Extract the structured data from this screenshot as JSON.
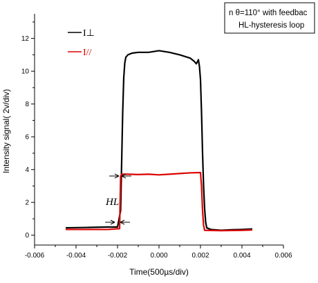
{
  "chart_data": {
    "type": "line",
    "xlabel": "Time(500µs/div)",
    "ylabel": "Intensity signal( 2v/div)",
    "xlim": [
      -0.006,
      0.006
    ],
    "ylim": [
      -0.6,
      13.5
    ],
    "x_ticks": [
      "-0.006",
      "-0.004",
      "-0.002",
      "0.000",
      "0.002",
      "0.004",
      "0.006"
    ],
    "y_ticks": [
      "0",
      "2",
      "4",
      "6",
      "8",
      "10",
      "12"
    ],
    "grid": false,
    "legend_position": "top-left",
    "series": [
      {
        "name": "I⊥",
        "color": "#000000",
        "points": [
          [
            -0.0045,
            0.45
          ],
          [
            -0.0035,
            0.47
          ],
          [
            -0.0025,
            0.5
          ],
          [
            -0.002,
            0.5
          ],
          [
            -0.00185,
            1.5
          ],
          [
            -0.0018,
            4.5
          ],
          [
            -0.00175,
            7.5
          ],
          [
            -0.0017,
            9.6
          ],
          [
            -0.00165,
            10.5
          ],
          [
            -0.0016,
            10.85
          ],
          [
            -0.0015,
            11.0
          ],
          [
            -0.0013,
            11.1
          ],
          [
            -0.001,
            11.15
          ],
          [
            -0.0005,
            11.15
          ],
          [
            0.0,
            11.25
          ],
          [
            0.0005,
            11.15
          ],
          [
            0.001,
            11.0
          ],
          [
            0.0015,
            10.8
          ],
          [
            0.0017,
            10.6
          ],
          [
            0.0018,
            10.45
          ],
          [
            0.0019,
            10.7
          ],
          [
            0.00195,
            10.3
          ],
          [
            0.002,
            9.5
          ],
          [
            0.00205,
            7.5
          ],
          [
            0.0021,
            5.0
          ],
          [
            0.00215,
            3.0
          ],
          [
            0.0022,
            1.6
          ],
          [
            0.00225,
            0.8
          ],
          [
            0.0023,
            0.45
          ],
          [
            0.0025,
            0.35
          ],
          [
            0.003,
            0.3
          ],
          [
            0.0035,
            0.33
          ],
          [
            0.004,
            0.35
          ],
          [
            0.0045,
            0.38
          ]
        ]
      },
      {
        "name": "I//",
        "color": "#dd0000",
        "points": [
          [
            -0.0045,
            0.35
          ],
          [
            -0.0035,
            0.35
          ],
          [
            -0.0025,
            0.35
          ],
          [
            -0.0019,
            0.4
          ],
          [
            -0.00185,
            3.6
          ],
          [
            -0.0018,
            3.72
          ],
          [
            -0.0015,
            3.72
          ],
          [
            -0.001,
            3.7
          ],
          [
            -0.0005,
            3.72
          ],
          [
            0.0,
            3.68
          ],
          [
            0.0005,
            3.72
          ],
          [
            0.001,
            3.76
          ],
          [
            0.0015,
            3.8
          ],
          [
            0.002,
            3.82
          ],
          [
            0.00205,
            3.0
          ],
          [
            0.0021,
            1.5
          ],
          [
            0.00215,
            0.6
          ],
          [
            0.0022,
            0.3
          ],
          [
            0.003,
            0.28
          ],
          [
            0.004,
            0.3
          ],
          [
            0.0045,
            0.32
          ]
        ]
      }
    ],
    "annotations": {
      "hl_label": "HL",
      "note_line1": "n  θ=110° with feedbac",
      "note_line2": "HL-hysteresis loop"
    }
  }
}
